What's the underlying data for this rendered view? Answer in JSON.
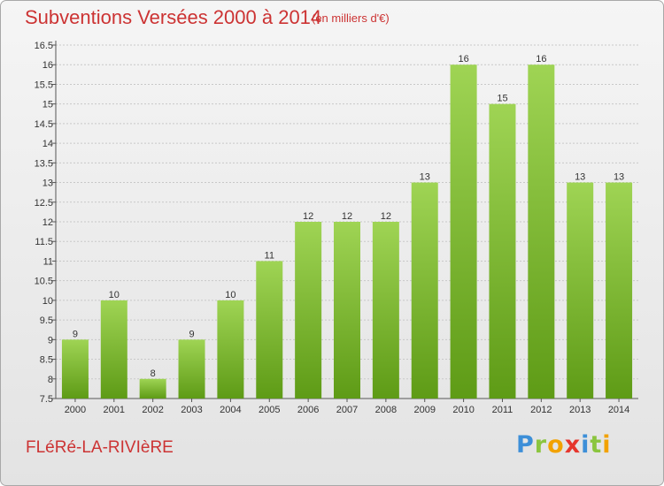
{
  "title": "Subventions Versées 2000 à 2014",
  "subtitle": "(en milliers d'€)",
  "footer": {
    "commune": "FLéRé-LA-RIVIèRE"
  },
  "logo": {
    "letters": [
      "P",
      "r",
      "o",
      "x",
      "i",
      "t",
      "i"
    ],
    "colors": [
      "#3d8fd8",
      "#8bc53f",
      "#f2a200",
      "#e6362d",
      "#3d8fd8",
      "#8bc53f",
      "#f2a200"
    ]
  },
  "colors": {
    "title": "#cc3333",
    "bar_light": "#9fd454",
    "bar_dark": "#5e9b16",
    "grid": "#c8c8c8"
  },
  "chart_data": {
    "type": "bar",
    "categories": [
      "2000",
      "2001",
      "2002",
      "2003",
      "2004",
      "2005",
      "2006",
      "2007",
      "2008",
      "2009",
      "2010",
      "2011",
      "2012",
      "2013",
      "2014"
    ],
    "values": [
      9,
      10,
      8,
      9,
      10,
      11,
      12,
      12,
      12,
      13,
      16,
      15,
      16,
      13,
      13
    ],
    "ylim": [
      7.5,
      16.5
    ],
    "yticks": [
      "7.5",
      "8",
      "8.5",
      "9",
      "9.5",
      "10",
      "10.5",
      "11",
      "11.5",
      "12",
      "12.5",
      "13",
      "13.5",
      "14",
      "14.5",
      "15",
      "15.5",
      "16",
      "16.5"
    ],
    "title": "Subventions Versées 2000 à 2014",
    "xlabel": "",
    "ylabel": "",
    "grid": true
  }
}
